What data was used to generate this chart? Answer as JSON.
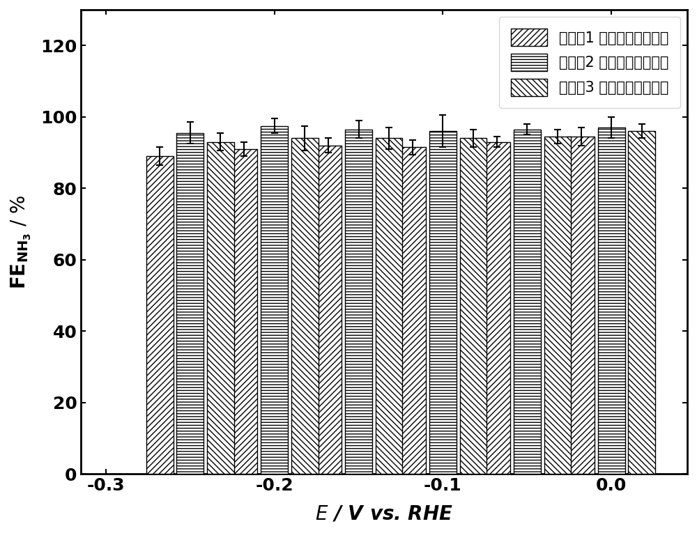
{
  "group_centers": [
    0.0,
    -0.05,
    -0.1,
    -0.15,
    -0.2,
    -0.25
  ],
  "x_tick_positions": [
    0.0,
    -0.1,
    -0.2,
    -0.3
  ],
  "x_tick_labels": [
    "0.0",
    "-0.1",
    "-0.2",
    "-0.3"
  ],
  "series": [
    {
      "name": "实施例1 窖酸根还原倆化剂",
      "values": [
        94.5,
        93.0,
        91.5,
        92.0,
        91.0,
        89.0
      ],
      "errors": [
        2.5,
        1.5,
        2.0,
        2.0,
        2.0,
        2.5
      ],
      "hatch": "////",
      "facecolor": "white",
      "edgecolor": "black"
    },
    {
      "name": "实施例2 窖酸根还原倆化剂",
      "values": [
        97.0,
        96.5,
        96.0,
        96.5,
        97.5,
        95.5
      ],
      "errors": [
        3.0,
        1.5,
        4.5,
        2.5,
        2.0,
        3.0
      ],
      "hatch": "||||",
      "facecolor": "white",
      "edgecolor": "black"
    },
    {
      "name": "实施例3 窖酸桩还原倆化剂",
      "values": [
        96.0,
        94.5,
        94.0,
        94.0,
        94.0,
        93.0
      ],
      "errors": [
        2.0,
        2.0,
        2.5,
        3.0,
        3.5,
        2.5
      ],
      "hatch": "\\\\\\\\",
      "facecolor": "white",
      "edgecolor": "black"
    }
  ],
  "ylim": [
    0,
    130
  ],
  "yticks": [
    0,
    20,
    40,
    60,
    80,
    100,
    120
  ],
  "bar_width": 0.016,
  "bar_spacing": 0.002,
  "xlim": [
    -0.315,
    0.045
  ],
  "background_color": "white",
  "legend_loc": "upper right",
  "tick_fontsize": 18,
  "label_fontsize": 20
}
